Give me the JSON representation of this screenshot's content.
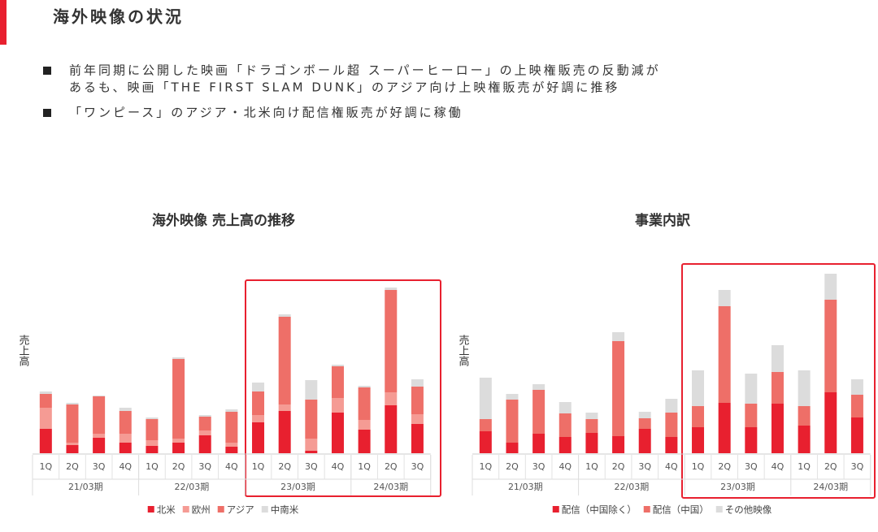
{
  "header": {
    "title": "海外映像の状況"
  },
  "bullets": [
    {
      "lines": [
        "前年同期に公開した映画「ドラゴンボール超 スーパーヒーロー」の上映権販売の反動減が",
        "あるも、映画「THE FIRST SLAM DUNK」のアジア向け上映権販売が好調に推移"
      ]
    },
    {
      "lines": [
        "「ワンピース」のアジア・北米向け配信権販売が好調に稼働"
      ]
    }
  ],
  "chart_data": [
    {
      "type": "bar",
      "stacked": true,
      "title": "海外映像 売上高の推移",
      "y_label": "売上高",
      "ylim": [
        0,
        230
      ],
      "groups": [
        {
          "label": "21/03期",
          "categories": [
            "1Q",
            "2Q",
            "3Q",
            "4Q"
          ]
        },
        {
          "label": "22/03期",
          "categories": [
            "1Q",
            "2Q",
            "3Q",
            "4Q"
          ]
        },
        {
          "label": "23/03期",
          "categories": [
            "1Q",
            "2Q",
            "3Q",
            "4Q"
          ]
        },
        {
          "label": "24/03期",
          "categories": [
            "1Q",
            "2Q",
            "3Q"
          ]
        }
      ],
      "series": [
        {
          "name": "北米",
          "color": "#e8202f",
          "values": [
            30,
            10,
            19,
            13,
            9,
            13,
            22,
            8,
            38,
            52,
            3,
            50,
            29,
            59,
            36
          ]
        },
        {
          "name": "欧州",
          "color": "#f59b94",
          "values": [
            26,
            3,
            5,
            11,
            7,
            5,
            6,
            5,
            9,
            8,
            15,
            18,
            12,
            16,
            12
          ]
        },
        {
          "name": "アジア",
          "color": "#ee6f68",
          "values": [
            17,
            47,
            46,
            28,
            26,
            98,
            17,
            38,
            29,
            108,
            48,
            39,
            40,
            126,
            34
          ]
        },
        {
          "name": "中南米",
          "color": "#dcdcdc",
          "values": [
            3,
            2,
            1,
            4,
            2,
            2,
            2,
            3,
            11,
            3,
            24,
            2,
            2,
            3,
            9
          ]
        }
      ]
    },
    {
      "type": "bar",
      "stacked": true,
      "title": "事業内訳",
      "y_label": "売上高",
      "ylim": [
        0,
        230
      ],
      "groups": [
        {
          "label": "21/03期",
          "categories": [
            "1Q",
            "2Q",
            "3Q",
            "4Q"
          ]
        },
        {
          "label": "22/03期",
          "categories": [
            "1Q",
            "2Q",
            "3Q",
            "4Q"
          ]
        },
        {
          "label": "23/03期",
          "categories": [
            "1Q",
            "2Q",
            "3Q",
            "4Q"
          ]
        },
        {
          "label": "24/03期",
          "categories": [
            "1Q",
            "2Q",
            "3Q"
          ]
        }
      ],
      "series": [
        {
          "name": "配信（中国除く）",
          "color": "#e8202f",
          "values": [
            27,
            13,
            24,
            20,
            25,
            21,
            30,
            20,
            32,
            62,
            32,
            61,
            34,
            75,
            44
          ]
        },
        {
          "name": "配信（中国）",
          "color": "#ee6f68",
          "values": [
            15,
            53,
            54,
            29,
            17,
            117,
            13,
            30,
            26,
            119,
            29,
            39,
            24,
            114,
            28
          ]
        },
        {
          "name": "その他映像",
          "color": "#dcdcdc",
          "values": [
            51,
            7,
            7,
            14,
            8,
            11,
            8,
            17,
            44,
            20,
            37,
            33,
            44,
            32,
            19
          ]
        }
      ]
    }
  ]
}
